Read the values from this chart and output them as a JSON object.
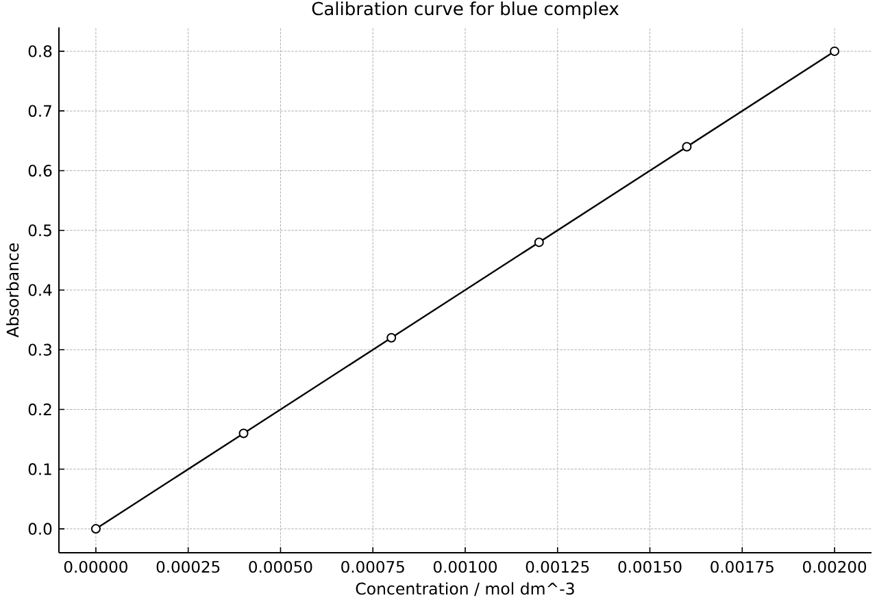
{
  "chart_data": {
    "type": "line",
    "title": "Calibration curve for blue complex",
    "xlabel": "Concentration / mol dm^-3",
    "ylabel": "Absorbance",
    "x": [
      0,
      0.0004,
      0.0008,
      0.0012,
      0.0016,
      0.002
    ],
    "series": [
      {
        "color": "#000000",
        "values": [
          0,
          0.16,
          0.32,
          0.48,
          0.64,
          0.8
        ]
      }
    ],
    "xlim": [
      -0.0001,
      0.0021
    ],
    "ylim": [
      -0.04,
      0.84
    ],
    "xticks": [
      {
        "value": 0,
        "label": "0.00000"
      },
      {
        "value": 0.00025,
        "label": "0.00025"
      },
      {
        "value": 0.0005,
        "label": "0.00050"
      },
      {
        "value": 0.00075,
        "label": "0.00075"
      },
      {
        "value": 0.001,
        "label": "0.00100"
      },
      {
        "value": 0.00125,
        "label": "0.00125"
      },
      {
        "value": 0.0015,
        "label": "0.00150"
      },
      {
        "value": 0.00175,
        "label": "0.00175"
      },
      {
        "value": 0.002,
        "label": "0.00200"
      }
    ],
    "yticks": [
      {
        "value": 0,
        "label": "0.0"
      },
      0.1,
      0.2,
      0.3,
      0.4,
      0.5,
      0.6,
      0.7,
      0.8
    ],
    "grid": true,
    "marker": "circle",
    "line_style": "solid"
  }
}
